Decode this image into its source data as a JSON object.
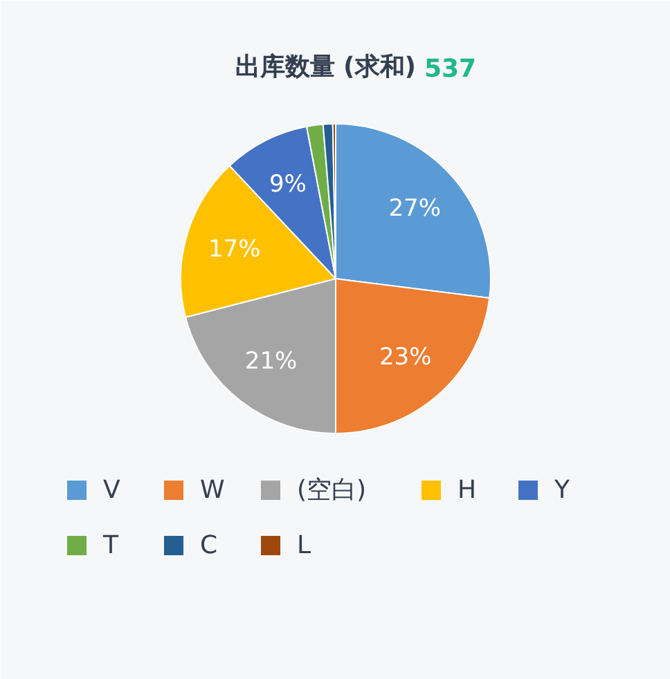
{
  "chart_data": {
    "type": "pie",
    "title": "出库数量 (求和)",
    "subtitle": "537",
    "categories": [
      "V",
      "W",
      "(空白)",
      "H",
      "Y",
      "T",
      "C",
      "L"
    ],
    "values": [
      27,
      23,
      21,
      17,
      9,
      1.7,
      1.0,
      0.3
    ],
    "colors": [
      "#5b9bd5",
      "#ed7d31",
      "#a5a5a5",
      "#ffc000",
      "#4472c4",
      "#70ad47",
      "#255e91",
      "#9e480e"
    ],
    "value_labels": [
      "27%",
      "23%",
      "21%",
      "17%",
      "9%",
      null,
      null,
      null
    ],
    "legend": "bottom"
  }
}
